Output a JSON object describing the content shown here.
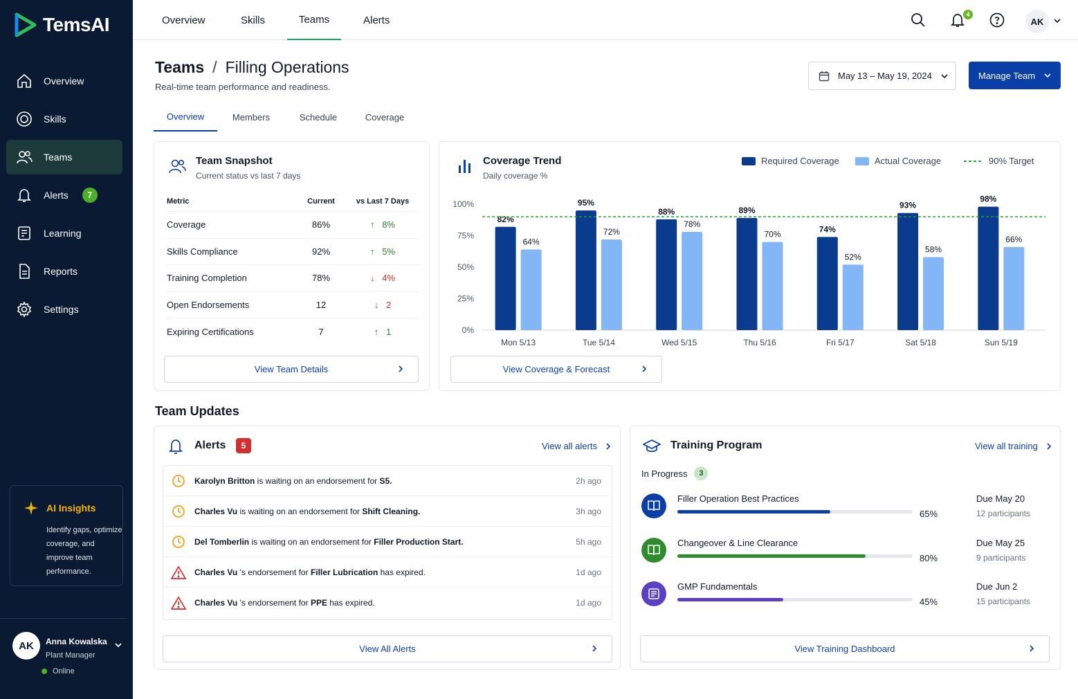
{
  "app": {
    "name": "TemsAI"
  },
  "sidebar": {
    "items": [
      {
        "label": "Overview"
      },
      {
        "label": "Skills"
      },
      {
        "label": "Teams"
      },
      {
        "label": "Alerts",
        "badge": "7"
      },
      {
        "label": "Learning"
      },
      {
        "label": "Reports"
      },
      {
        "label": "Settings"
      }
    ],
    "ai": {
      "title": "AI Insights",
      "text": "Identify gaps, optimize coverage, and improve team performance."
    },
    "user": {
      "initials": "AK",
      "name": "Anna Kowalska",
      "role": "Plant Manager",
      "status": "Online"
    }
  },
  "topnav": {
    "tabs": [
      "Overview",
      "Skills",
      "Teams",
      "Alerts"
    ],
    "active_tab": "Teams",
    "notif_count": "4",
    "avatar": "AK"
  },
  "header": {
    "crumb_root": "Teams",
    "crumb_sep": "/",
    "crumb_page": "Filling Operations",
    "subtitle": "Real-time team performance and readiness.",
    "date_range": "May 13 – May 19, 2024",
    "manage_label": "Manage Team"
  },
  "subtabs": [
    "Overview",
    "Members",
    "Schedule",
    "Coverage"
  ],
  "snapshot": {
    "title": "Team Snapshot",
    "subtitle": "Current status vs last 7 days",
    "headers": [
      "Metric",
      "Current",
      "vs Last 7 Days"
    ],
    "rows": [
      {
        "metric": "Coverage",
        "current": "86%",
        "arrow": "↑",
        "delta": "8%",
        "dir": "up"
      },
      {
        "metric": "Skills Compliance",
        "current": "92%",
        "arrow": "↑",
        "delta": "5%",
        "dir": "up"
      },
      {
        "metric": "Training Completion",
        "current": "78%",
        "arrow": "↓",
        "delta": "4%",
        "dir": "down"
      },
      {
        "metric": "Open Endorsements",
        "current": "12",
        "arrow": "↓",
        "delta": "2",
        "dir": "down"
      },
      {
        "metric": "Expiring Certifications",
        "current": "7",
        "arrow": "↑",
        "delta": "1",
        "dir": "up"
      }
    ],
    "button": "View Team Details"
  },
  "coverage": {
    "title": "Coverage Trend",
    "subtitle": "Daily coverage %",
    "legend_required": "Required Coverage",
    "legend_actual": "Actual Coverage",
    "legend_target": "90% Target",
    "button": "View Coverage & Forecast"
  },
  "chart_data": {
    "type": "bar",
    "title": "Coverage Trend",
    "subtitle": "Daily coverage %",
    "categories": [
      "Mon 5/13",
      "Tue 5/14",
      "Wed 5/15",
      "Thu 5/16",
      "Fri 5/17",
      "Sat 5/18",
      "Sun 5/19"
    ],
    "series": [
      {
        "name": "Required Coverage",
        "values": [
          82,
          95,
          88,
          89,
          74,
          93,
          98
        ],
        "color": "#0b3b8c"
      },
      {
        "name": "Actual Coverage",
        "values": [
          64,
          72,
          78,
          70,
          52,
          58,
          66
        ],
        "color": "#82b6f5"
      }
    ],
    "target": {
      "name": "90% Target",
      "value": 90,
      "color": "#2e9d3a"
    },
    "ylim": [
      0,
      100
    ],
    "yticks": [
      "0%",
      "25%",
      "50%",
      "75%",
      "100%"
    ],
    "grid": false,
    "legend": "top-right"
  },
  "updates": {
    "title": "Team Updates",
    "alerts": {
      "title": "Alerts",
      "count": "5",
      "view_all": "View all alerts",
      "button": "View All Alerts",
      "items": [
        {
          "icon": "clock",
          "name": "Karolyn Britton",
          "mid": " is waiting on an endorsement for ",
          "target": "S5.",
          "end": "",
          "time": "2h ago"
        },
        {
          "icon": "clock",
          "name": "Charles Vu",
          "mid": " is waiting on an endorsement for ",
          "target": "Shift Cleaning.",
          "end": "",
          "time": "3h ago"
        },
        {
          "icon": "clock",
          "name": "Del Tomberlin",
          "mid": " is waiting on an endorsement for ",
          "target": "Filler Production Start.",
          "end": "",
          "time": "5h ago"
        },
        {
          "icon": "warning",
          "name": "Charles Vu",
          "mid": " 's endorsement for ",
          "target": "Filler Lubrication",
          "end": " has expired.",
          "time": "1d ago"
        },
        {
          "icon": "warning",
          "name": "Charles Vu",
          "mid": " 's endorsement for ",
          "target": "PPE",
          "end": " has expired.",
          "time": "1d ago"
        }
      ]
    },
    "training": {
      "title": "Training Program",
      "view_all": "View all training",
      "in_progress_label": "In Progress",
      "in_progress_count": "3",
      "button": "View Training Dashboard",
      "programs": [
        {
          "name": "Filler Operation Best Practices",
          "pct": "65%",
          "progress": 0.65,
          "due": "Due May 20",
          "participants": "12 participants",
          "color": "#0b3fa8",
          "icon_bg": "#0b3fa8"
        },
        {
          "name": "Changeover & Line Clearance",
          "pct": "80%",
          "progress": 0.8,
          "due": "Due May 25",
          "participants": "9 participants",
          "color": "#2e8b2e",
          "icon_bg": "#2e8b2e"
        },
        {
          "name": "GMP Fundamentals",
          "pct": "45%",
          "progress": 0.45,
          "due": "Due Jun 2",
          "participants": "15 participants",
          "color": "#5b3fc4",
          "icon_bg": "#5b3fc4"
        }
      ]
    }
  }
}
